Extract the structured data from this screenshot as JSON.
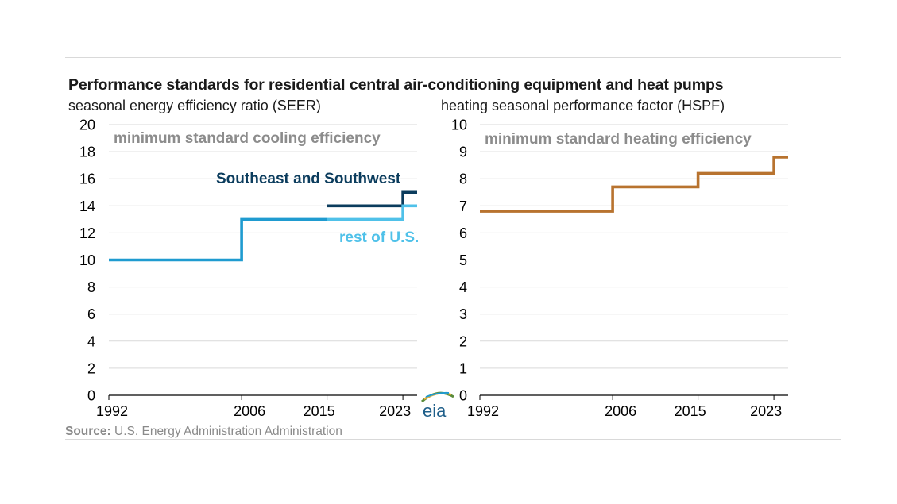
{
  "title": "Performance standards for residential central air-conditioning equipment and heat pumps",
  "source": {
    "label": "Source:",
    "text": "U.S. Energy Administration Administration"
  },
  "logo": "eia",
  "colors": {
    "southeast": "#0b3c5d",
    "rest": "#4fc1e9",
    "main_blue": "#1f9bd0",
    "heating": "#b8732f",
    "grid": "#d9d9d9",
    "annotation_gray": "#8c8c8c"
  },
  "chart_data": [
    {
      "type": "line",
      "step": true,
      "ylabel": "seasonal energy efficiency ratio (SEER)",
      "annotation": "minimum standard cooling efficiency",
      "x_ticks": [
        "1992",
        "2006",
        "2015",
        "2023"
      ],
      "xlim": [
        1992,
        2024.5
      ],
      "ylim": [
        0,
        20
      ],
      "y_ticks": [
        0,
        2,
        4,
        6,
        8,
        10,
        12,
        14,
        16,
        18,
        20
      ],
      "grid": true,
      "series": [
        {
          "name": "Southeast and Southwest",
          "color": "#0b3c5d",
          "x": [
            2015,
            2023,
            2023,
            2024.5
          ],
          "y": [
            14,
            14,
            15,
            15
          ]
        },
        {
          "name": "rest of U.S.",
          "color": "#4fc1e9",
          "x": [
            2015,
            2023,
            2023,
            2024.5
          ],
          "y": [
            13,
            13,
            14,
            14
          ]
        },
        {
          "color": "#1f9bd0",
          "x": [
            1992,
            2006,
            2006,
            2015
          ],
          "y": [
            10,
            10,
            13,
            13
          ]
        }
      ]
    },
    {
      "type": "line",
      "step": true,
      "ylabel": "heating seasonal performance factor (HSPF)",
      "annotation": "minimum standard heating efficiency",
      "x_ticks": [
        "1992",
        "2006",
        "2015",
        "2023"
      ],
      "xlim": [
        1992,
        2024.5
      ],
      "ylim": [
        0,
        10
      ],
      "y_ticks": [
        0,
        1,
        2,
        3,
        4,
        5,
        6,
        7,
        8,
        9,
        10
      ],
      "grid": true,
      "series": [
        {
          "color": "#b8732f",
          "x": [
            1992,
            2006,
            2006,
            2015,
            2015,
            2023,
            2023,
            2024.5
          ],
          "y": [
            6.8,
            6.8,
            7.7,
            7.7,
            8.2,
            8.2,
            8.8,
            8.8
          ]
        }
      ]
    }
  ]
}
